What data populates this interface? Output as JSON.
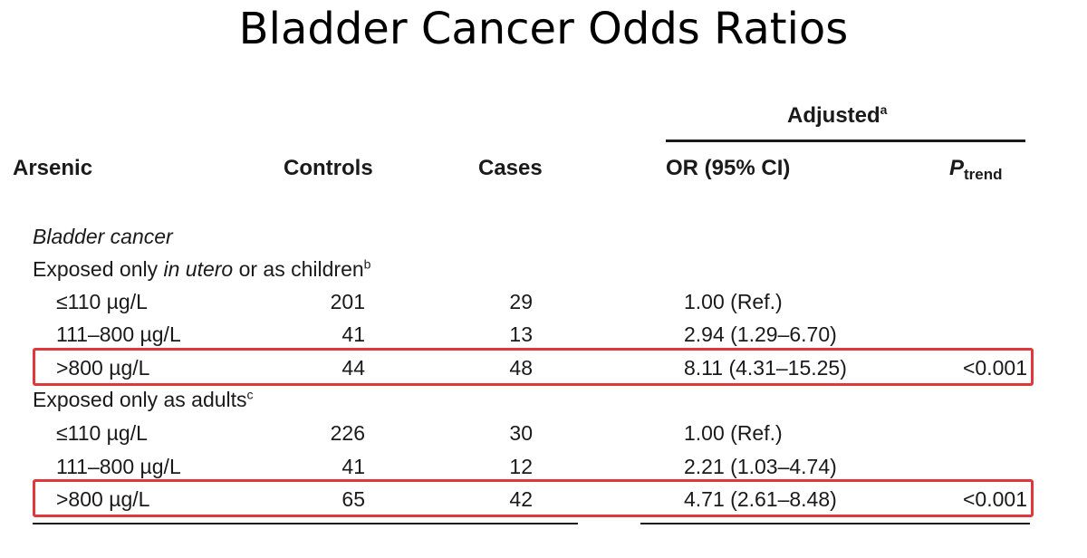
{
  "title": "Bladder Cancer Odds Ratios",
  "header": {
    "group": "Adjusted",
    "group_sup": "a",
    "col_arsenic": "Arsenic",
    "col_controls": "Controls",
    "col_cases": "Cases",
    "col_or": "OR (95% CI)",
    "col_ptrend_main": "P",
    "col_ptrend_sub": "trend"
  },
  "section_label": "Bladder cancer",
  "groups": [
    {
      "label_pre": "Exposed only ",
      "label_ital": "in utero",
      "label_post": " or as children",
      "label_sup": "b",
      "rows": [
        {
          "arsenic": "≤110 µg/L",
          "controls": "201",
          "cases": "29",
          "or": "1.00 (Ref.)",
          "ptrend": ""
        },
        {
          "arsenic": "111–800 µg/L",
          "controls": "41",
          "cases": "13",
          "or": "2.94 (1.29–6.70)",
          "ptrend": ""
        },
        {
          "arsenic": ">800 µg/L",
          "controls": "44",
          "cases": "48",
          "or": "8.11 (4.31–15.25)",
          "ptrend": "<0.001"
        }
      ]
    },
    {
      "label_pre": "Exposed only as adults",
      "label_ital": "",
      "label_post": "",
      "label_sup": "c",
      "rows": [
        {
          "arsenic": "≤110 µg/L",
          "controls": "226",
          "cases": "30",
          "or": "1.00 (Ref.)",
          "ptrend": ""
        },
        {
          "arsenic": "111–800 µg/L",
          "controls": "41",
          "cases": "12",
          "or": "2.21 (1.03–4.74)",
          "ptrend": ""
        },
        {
          "arsenic": ">800 µg/L",
          "controls": "65",
          "cases": "42",
          "or": "4.71 (2.61–8.48)",
          "ptrend": "<0.001"
        }
      ]
    }
  ],
  "colors": {
    "highlight": "#e0373a",
    "text": "#1a1a1a"
  }
}
